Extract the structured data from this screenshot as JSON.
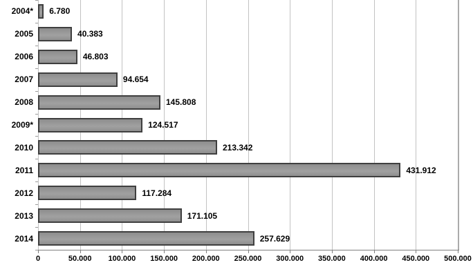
{
  "chart_data": {
    "type": "bar",
    "orientation": "horizontal",
    "title": "",
    "xlabel": "",
    "ylabel": "",
    "categories": [
      "2004*",
      "2005",
      "2006",
      "2007",
      "2008",
      "2009*",
      "2010",
      "2011",
      "2012",
      "2013",
      "2014"
    ],
    "values": [
      6780,
      40383,
      46803,
      94654,
      145808,
      124517,
      213342,
      431912,
      117284,
      171105,
      257629
    ],
    "value_labels": [
      "6.780",
      "40.383",
      "46.803",
      "94.654",
      "145.808",
      "124.517",
      "213.342",
      "431.912",
      "117.284",
      "171.105",
      "257.629"
    ],
    "xlim": [
      0,
      500000
    ],
    "x_tick_interval": 50000,
    "x_tick_values": [
      0,
      50000,
      100000,
      150000,
      200000,
      250000,
      300000,
      350000,
      400000,
      450000,
      500000
    ],
    "x_tick_labels": [
      "0",
      "50.000",
      "100.000",
      "150.000",
      "200.000",
      "250.000",
      "300.000",
      "350.000",
      "400.000",
      "450.000",
      "500.000"
    ],
    "grid": true,
    "legend": "none",
    "colors": {
      "bar_fill": "#979797",
      "bar_border": "#3f3f3f",
      "gridline": "#c2c2c2",
      "gridline_last": "#ababab",
      "axis_line": "#7f7f7f",
      "text": "#000000",
      "background": "#ffffff"
    }
  }
}
